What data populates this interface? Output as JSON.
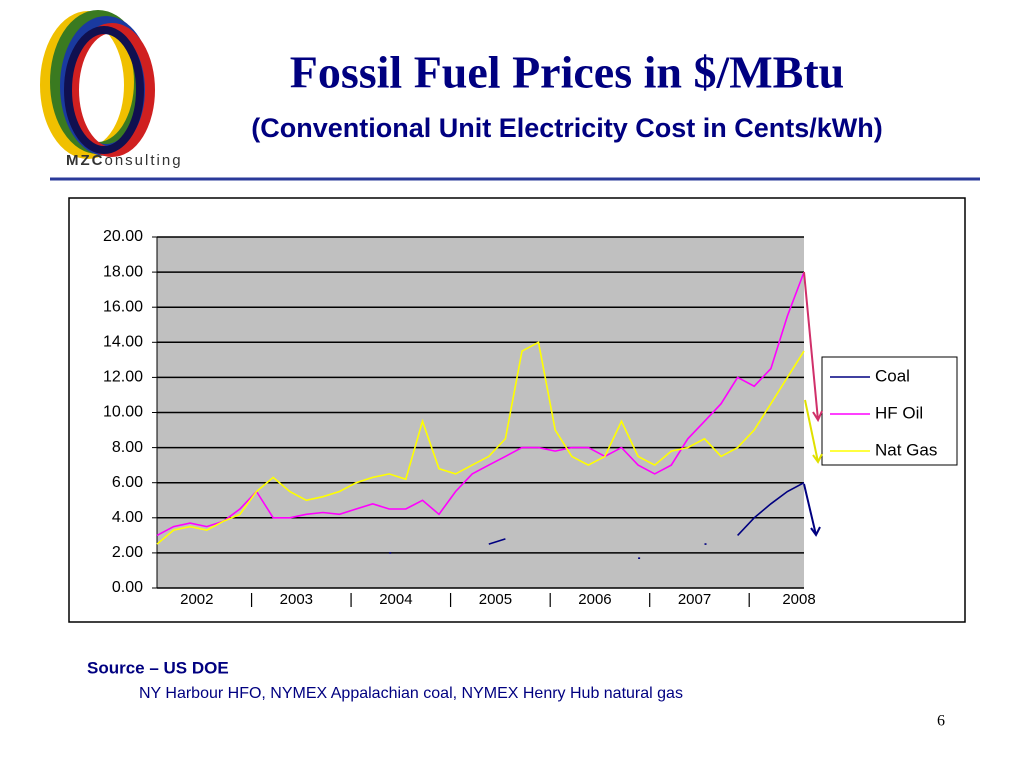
{
  "logo": {
    "bold": "MZC",
    "rest": "onsulting"
  },
  "chart_data": {
    "type": "line",
    "title": "Fossil Fuel Prices in $/MBtu",
    "subtitle": "(Conventional Unit Electricity Cost in Cents/kWh)",
    "x": [
      2002,
      2002.167,
      2002.333,
      2002.5,
      2002.667,
      2002.833,
      2003,
      2003.167,
      2003.333,
      2003.5,
      2003.667,
      2003.833,
      2004,
      2004.167,
      2004.333,
      2004.5,
      2004.667,
      2004.833,
      2005,
      2005.167,
      2005.333,
      2005.5,
      2005.667,
      2005.833,
      2006,
      2006.167,
      2006.333,
      2006.5,
      2006.667,
      2006.833,
      2007,
      2007.167,
      2007.333,
      2007.5,
      2007.667,
      2007.833,
      2008,
      2008.167,
      2008.333,
      2008.5
    ],
    "series": [
      {
        "name": "Coal",
        "color": "#000080",
        "values": [
          null,
          null,
          null,
          null,
          null,
          null,
          null,
          null,
          null,
          null,
          null,
          null,
          null,
          null,
          2.0,
          null,
          null,
          null,
          null,
          null,
          2.5,
          2.8,
          null,
          null,
          null,
          null,
          null,
          null,
          null,
          1.7,
          null,
          null,
          null,
          2.5,
          null,
          3.0,
          4.0,
          4.8,
          5.5,
          6.0
        ]
      },
      {
        "name": "HF Oil",
        "color": "#ff00ff",
        "values": [
          3.0,
          3.5,
          3.7,
          3.5,
          3.8,
          4.5,
          5.5,
          4.0,
          4.0,
          4.2,
          4.3,
          4.2,
          4.5,
          4.8,
          4.5,
          4.5,
          5.0,
          4.2,
          5.5,
          6.5,
          7.0,
          7.5,
          8.0,
          8.0,
          7.8,
          8.0,
          8.0,
          7.5,
          8.0,
          7.0,
          6.5,
          7.0,
          8.5,
          9.5,
          10.5,
          12.0,
          11.5,
          12.5,
          15.5,
          18.0
        ]
      },
      {
        "name": "Nat Gas",
        "color": "#ffff00",
        "values": [
          2.5,
          3.3,
          3.5,
          3.3,
          3.8,
          4.2,
          5.5,
          6.3,
          5.5,
          5.0,
          5.2,
          5.5,
          6.0,
          6.3,
          6.5,
          6.2,
          9.5,
          6.8,
          6.5,
          7.0,
          7.5,
          8.5,
          13.5,
          14.0,
          9.0,
          7.5,
          7.0,
          7.5,
          9.5,
          7.5,
          7.0,
          7.8,
          8.0,
          8.5,
          7.5,
          8.0,
          9.0,
          10.5,
          12.0,
          13.5
        ]
      }
    ],
    "xlim": [
      2002,
      2008.5
    ],
    "xticks": [
      {
        "value": 2002.4,
        "label": "2002"
      },
      {
        "value": 2002.95,
        "label": "|"
      },
      {
        "value": 2003.4,
        "label": "2003"
      },
      {
        "value": 2003.95,
        "label": "|"
      },
      {
        "value": 2004.4,
        "label": "2004"
      },
      {
        "value": 2004.95,
        "label": "|"
      },
      {
        "value": 2005.4,
        "label": "2005"
      },
      {
        "value": 2005.95,
        "label": "|"
      },
      {
        "value": 2006.4,
        "label": "2006"
      },
      {
        "value": 2006.95,
        "label": "|"
      },
      {
        "value": 2007.4,
        "label": "2007"
      },
      {
        "value": 2007.95,
        "label": "|"
      },
      {
        "value": 2008.45,
        "label": "2008"
      }
    ],
    "ylim": [
      0,
      20
    ],
    "yticks": [
      {
        "value": 0,
        "label": "0.00"
      },
      {
        "value": 2,
        "label": "2.00"
      },
      {
        "value": 4,
        "label": "4.00"
      },
      {
        "value": 6,
        "label": "6.00"
      },
      {
        "value": 8,
        "label": "8.00"
      },
      {
        "value": 10,
        "label": "10.00"
      },
      {
        "value": 12,
        "label": "12.00"
      },
      {
        "value": 14,
        "label": "14.00"
      },
      {
        "value": 16,
        "label": "16.00"
      },
      {
        "value": 18,
        "label": "18.00"
      },
      {
        "value": 20,
        "label": "20.00"
      }
    ],
    "grid": true,
    "legend": "right"
  },
  "source": {
    "heading": "Source – US DOE",
    "note": "NY Harbour HFO, NYMEX Appalachian coal, NYMEX Henry Hub natural gas"
  },
  "page_number": "6"
}
